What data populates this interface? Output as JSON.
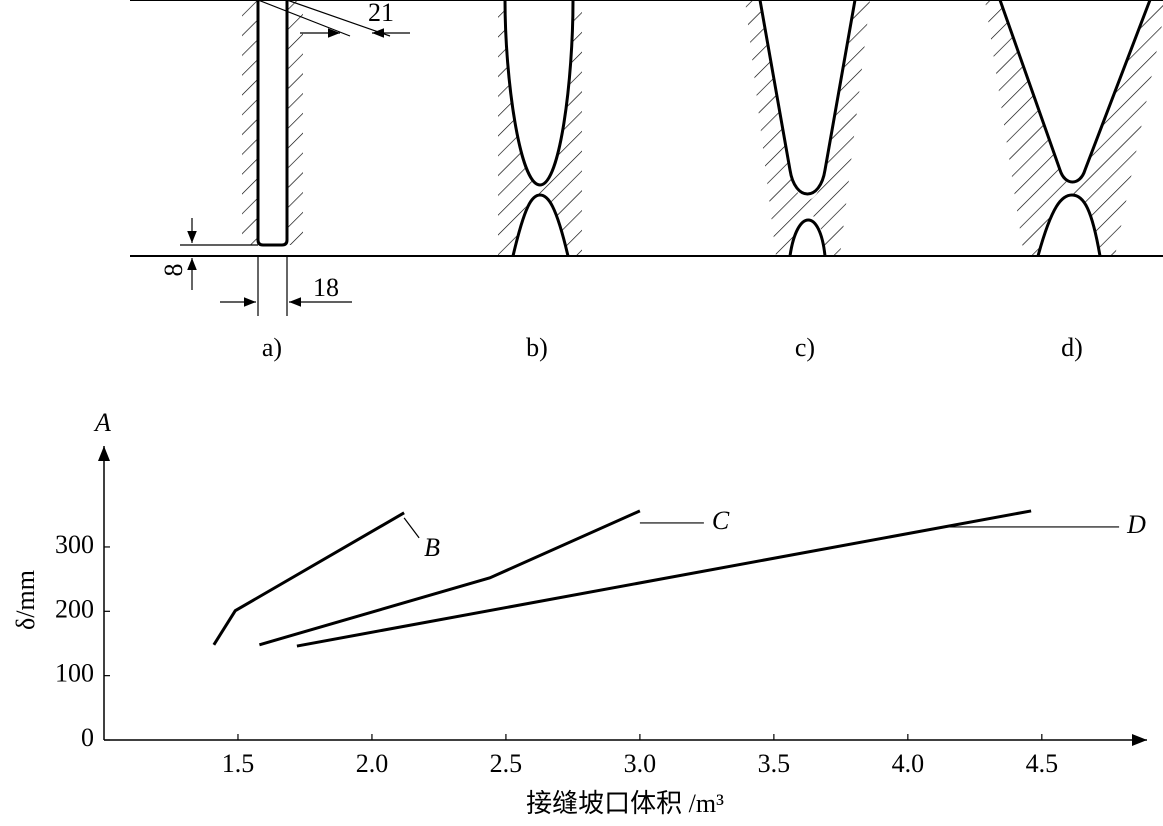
{
  "diagram": {
    "dimensions": [
      "21",
      "18",
      "8"
    ],
    "labels": [
      "a)",
      "b)",
      "c)",
      "d)"
    ]
  },
  "chart_data": {
    "type": "line",
    "x_label": "接缝坡口体积 /m³",
    "y_label": "δ/mm",
    "axis_top_label": "A",
    "series": [
      {
        "name": "B",
        "color": "#000000",
        "x": [
          1.41,
          1.49,
          2.12
        ],
        "values": [
          148,
          201,
          353
        ]
      },
      {
        "name": "C",
        "color": "#000000",
        "x": [
          1.58,
          2.44,
          3.0
        ],
        "values": [
          148,
          252,
          356
        ]
      },
      {
        "name": "D",
        "color": "#000000",
        "x": [
          1.72,
          4.46
        ],
        "values": [
          146,
          356
        ]
      }
    ],
    "xlim": [
      1.0,
      4.9
    ],
    "xticks": [
      1.5,
      {
        "value": 2,
        "label": "2.0"
      },
      2.5,
      {
        "value": 3,
        "label": "3.0"
      },
      3.5,
      {
        "value": 4,
        "label": "4.0"
      },
      4.5
    ],
    "ylim": [
      0,
      460
    ],
    "yticks": [
      0,
      100,
      200,
      300
    ],
    "grid": false
  }
}
